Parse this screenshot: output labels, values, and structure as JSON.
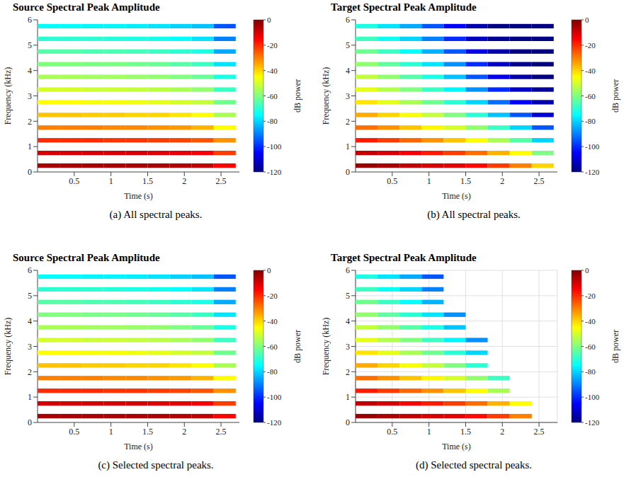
{
  "chart_data": [
    {
      "type": "heatmap",
      "title": "Source Spectral Peak Amplitude",
      "caption": "(a) All spectral peaks.",
      "x_label": "Time (s)",
      "y_label": "Frequency (kHz)",
      "x": [
        0.15,
        0.45,
        0.75,
        1.05,
        1.35,
        1.65,
        1.95,
        2.25,
        2.55
      ],
      "y": [
        0.25,
        0.75,
        1.25,
        1.75,
        2.25,
        2.75,
        3.25,
        3.75,
        4.25,
        4.75,
        5.25,
        5.75
      ],
      "cells": [
        [
          -5,
          -5,
          -5,
          -5,
          -5,
          -5,
          -6,
          -8,
          -15
        ],
        [
          -10,
          -10,
          -10,
          -10,
          -10,
          -11,
          -12,
          -14,
          -22
        ],
        [
          -20,
          -20,
          -20,
          -21,
          -21,
          -22,
          -23,
          -25,
          -32
        ],
        [
          -30,
          -30,
          -30,
          -31,
          -31,
          -32,
          -33,
          -36,
          -45
        ],
        [
          -38,
          -38,
          -39,
          -39,
          -40,
          -40,
          -42,
          -45,
          -55
        ],
        [
          -45,
          -45,
          -46,
          -46,
          -47,
          -48,
          -50,
          -52,
          -62
        ],
        [
          -50,
          -50,
          -51,
          -51,
          -52,
          -53,
          -55,
          -58,
          -68
        ],
        [
          -55,
          -55,
          -56,
          -56,
          -57,
          -58,
          -60,
          -63,
          -72
        ],
        [
          -60,
          -60,
          -61,
          -61,
          -62,
          -63,
          -65,
          -68,
          -78
        ],
        [
          -65,
          -65,
          -66,
          -66,
          -67,
          -68,
          -70,
          -72,
          -85
        ],
        [
          -70,
          -70,
          -70,
          -71,
          -72,
          -73,
          -75,
          -78,
          -90
        ],
        [
          -75,
          -75,
          -76,
          -76,
          -77,
          -78,
          -80,
          -82,
          -95
        ]
      ],
      "xlim": [
        0,
        2.75
      ],
      "xticks": [
        0.5,
        1,
        1.5,
        2,
        2.5
      ],
      "ylim": [
        0,
        6
      ],
      "yticks": [
        0,
        1,
        2,
        3,
        4,
        5,
        6
      ],
      "colorbar": {
        "label": "dB power",
        "lim": [
          -120,
          0
        ],
        "ticks": [
          0,
          -20,
          -40,
          -60,
          -80,
          -100,
          -120
        ]
      },
      "grid": false
    },
    {
      "type": "heatmap",
      "title": "Target Spectral Peak Amplitude",
      "caption": "(b) All spectral peaks.",
      "x_label": "Time (s)",
      "y_label": "Frequency (kHz)",
      "x": [
        0.15,
        0.45,
        0.75,
        1.05,
        1.35,
        1.65,
        1.95,
        2.25,
        2.55
      ],
      "y": [
        0.25,
        0.75,
        1.25,
        1.75,
        2.25,
        2.75,
        3.25,
        3.75,
        4.25,
        4.75,
        5.25,
        5.75
      ],
      "cells": [
        [
          -3,
          -5,
          -8,
          -10,
          -12,
          -16,
          -22,
          -30,
          -40
        ],
        [
          -8,
          -10,
          -14,
          -18,
          -22,
          -28,
          -36,
          -45,
          -60
        ],
        [
          -18,
          -22,
          -27,
          -32,
          -38,
          -45,
          -55,
          -65,
          -80
        ],
        [
          -28,
          -32,
          -38,
          -44,
          -50,
          -58,
          -68,
          -80,
          -95
        ],
        [
          -35,
          -40,
          -46,
          -52,
          -60,
          -70,
          -82,
          -95,
          -110
        ],
        [
          -42,
          -48,
          -55,
          -62,
          -70,
          -80,
          -92,
          -105,
          -115
        ],
        [
          -48,
          -54,
          -60,
          -68,
          -76,
          -88,
          -100,
          -112,
          -118
        ],
        [
          -52,
          -58,
          -65,
          -72,
          -82,
          -95,
          -108,
          -115,
          -120
        ],
        [
          -58,
          -64,
          -70,
          -78,
          -88,
          -100,
          -112,
          -118,
          -120
        ],
        [
          -62,
          -68,
          -75,
          -84,
          -95,
          -108,
          -115,
          -120,
          -120
        ],
        [
          -68,
          -74,
          -80,
          -90,
          -100,
          -112,
          -118,
          -120,
          -120
        ],
        [
          -72,
          -78,
          -85,
          -95,
          -105,
          -115,
          -120,
          -120,
          -120
        ]
      ],
      "xlim": [
        0,
        2.75
      ],
      "xticks": [
        0.5,
        1,
        1.5,
        2,
        2.5
      ],
      "ylim": [
        0,
        6
      ],
      "yticks": [
        0,
        1,
        2,
        3,
        4,
        5,
        6
      ],
      "colorbar": {
        "label": "dB power",
        "lim": [
          -120,
          0
        ],
        "ticks": [
          0,
          -20,
          -40,
          -60,
          -80,
          -100,
          -120
        ]
      },
      "grid": false
    },
    {
      "type": "heatmap",
      "title": "Source Spectral Peak Amplitude",
      "caption": "(c) Selected spectral peaks.",
      "x_label": "Time (s)",
      "y_label": "Frequency (kHz)",
      "x": [
        0.15,
        0.45,
        0.75,
        1.05,
        1.35,
        1.65,
        1.95,
        2.25,
        2.55
      ],
      "y": [
        0.25,
        0.75,
        1.25,
        1.75,
        2.25,
        2.75,
        3.25,
        3.75,
        4.25,
        4.75,
        5.25,
        5.75
      ],
      "cells": [
        [
          -5,
          -5,
          -5,
          -5,
          -5,
          -5,
          -6,
          -8,
          -15
        ],
        [
          -10,
          -10,
          -10,
          -10,
          -10,
          -11,
          -12,
          -14,
          -22
        ],
        [
          -20,
          -20,
          -20,
          -21,
          -21,
          -22,
          -23,
          -25,
          -32
        ],
        [
          -30,
          -30,
          -30,
          -31,
          -31,
          -32,
          -33,
          -36,
          -45
        ],
        [
          -38,
          -38,
          -39,
          -39,
          -40,
          -40,
          -42,
          -45,
          -55
        ],
        [
          -45,
          -45,
          -46,
          -46,
          -47,
          -48,
          -50,
          -52,
          -62
        ],
        [
          -50,
          -50,
          -51,
          -51,
          -52,
          -53,
          -55,
          -58,
          -68
        ],
        [
          -55,
          -55,
          -56,
          -56,
          -57,
          -58,
          -60,
          -63,
          -72
        ],
        [
          -60,
          -60,
          -61,
          -61,
          -62,
          -63,
          -65,
          -68,
          -78
        ],
        [
          -65,
          -65,
          -66,
          -66,
          -67,
          -68,
          -70,
          -72,
          -85
        ],
        [
          -70,
          -70,
          -70,
          -71,
          -72,
          -73,
          -75,
          -78,
          -90
        ],
        [
          -75,
          -75,
          -76,
          -76,
          -77,
          -78,
          -80,
          -82,
          -95
        ]
      ],
      "xlim": [
        0,
        2.75
      ],
      "xticks": [
        0.5,
        1,
        1.5,
        2,
        2.5
      ],
      "ylim": [
        0,
        6
      ],
      "yticks": [
        0,
        1,
        2,
        3,
        4,
        5,
        6
      ],
      "colorbar": {
        "label": "dB power",
        "lim": [
          -120,
          0
        ],
        "ticks": [
          0,
          -20,
          -40,
          -60,
          -80,
          -100,
          -120
        ]
      },
      "grid": false
    },
    {
      "type": "heatmap",
      "title": "Target Spectral Peak Amplitude",
      "caption": "(d) Selected spectral peaks.",
      "x_label": "Time (s)",
      "y_label": "Frequency (kHz)",
      "x": [
        0.15,
        0.45,
        0.75,
        1.05,
        1.35,
        1.65,
        1.95,
        2.25,
        2.55
      ],
      "y": [
        0.25,
        0.75,
        1.25,
        1.75,
        2.25,
        2.75,
        3.25,
        3.75,
        4.25,
        4.75,
        5.25,
        5.75
      ],
      "cells": [
        [
          -3,
          -5,
          -8,
          -10,
          -12,
          -16,
          -22,
          -30,
          null
        ],
        [
          -8,
          -10,
          -14,
          -18,
          -22,
          -28,
          -36,
          -45,
          null
        ],
        [
          -18,
          -22,
          -27,
          -32,
          -38,
          -45,
          -55,
          null,
          null
        ],
        [
          -28,
          -32,
          -38,
          -44,
          -50,
          -58,
          -68,
          null,
          null
        ],
        [
          -35,
          -40,
          -46,
          -52,
          -60,
          -70,
          null,
          null,
          null
        ],
        [
          -42,
          -48,
          -55,
          -62,
          -70,
          -80,
          null,
          null,
          null
        ],
        [
          -48,
          -54,
          -60,
          -68,
          -76,
          -88,
          null,
          null,
          null
        ],
        [
          -52,
          -58,
          -65,
          -72,
          -82,
          null,
          null,
          null,
          null
        ],
        [
          -58,
          -64,
          -70,
          -78,
          -88,
          null,
          null,
          null,
          null
        ],
        [
          -62,
          -68,
          -75,
          -84,
          null,
          null,
          null,
          null,
          null
        ],
        [
          -68,
          -74,
          -80,
          -90,
          null,
          null,
          null,
          null,
          null
        ],
        [
          -72,
          -78,
          -85,
          -95,
          null,
          null,
          null,
          null,
          null
        ]
      ],
      "xlim": [
        0,
        2.75
      ],
      "xticks": [
        0.5,
        1,
        1.5,
        2,
        2.5
      ],
      "ylim": [
        0,
        6
      ],
      "yticks": [
        0,
        1,
        2,
        3,
        4,
        5,
        6
      ],
      "colorbar": {
        "label": "dB power",
        "lim": [
          -120,
          0
        ],
        "ticks": [
          0,
          -20,
          -40,
          -60,
          -80,
          -100,
          -120
        ]
      },
      "grid": true
    }
  ]
}
